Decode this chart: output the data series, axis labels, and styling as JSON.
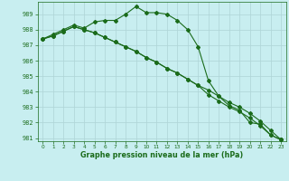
{
  "xlabel": "Graphe pression niveau de la mer (hPa)",
  "background_color": "#c8eef0",
  "grid_color": "#aed4d6",
  "line_color": "#1a6b1a",
  "xlim": [
    -0.5,
    23.5
  ],
  "ylim": [
    980.8,
    989.8
  ],
  "yticks": [
    981,
    982,
    983,
    984,
    985,
    986,
    987,
    988,
    989
  ],
  "xticks": [
    0,
    1,
    2,
    3,
    4,
    5,
    6,
    7,
    8,
    9,
    10,
    11,
    12,
    13,
    14,
    15,
    16,
    17,
    18,
    19,
    20,
    21,
    22,
    23
  ],
  "series1": [
    987.4,
    987.7,
    988.0,
    988.3,
    988.1,
    988.5,
    988.6,
    988.6,
    989.0,
    989.5,
    989.1,
    989.1,
    989.0,
    988.6,
    988.0,
    986.9,
    984.7,
    983.7,
    983.1,
    982.8,
    982.0,
    981.9,
    981.2,
    980.9
  ],
  "series2": [
    987.4,
    987.6,
    987.9,
    988.2,
    988.0,
    987.8,
    987.5,
    987.2,
    986.9,
    986.6,
    986.2,
    985.9,
    985.5,
    985.2,
    984.8,
    984.4,
    984.1,
    983.7,
    983.3,
    983.0,
    982.6,
    982.1,
    981.5,
    980.9
  ],
  "series3": [
    987.4,
    987.6,
    987.9,
    988.2,
    988.0,
    987.8,
    987.5,
    987.2,
    986.9,
    986.6,
    986.2,
    985.9,
    985.5,
    985.2,
    984.8,
    984.4,
    983.8,
    983.4,
    983.0,
    982.7,
    982.3,
    981.8,
    981.2,
    980.9
  ]
}
